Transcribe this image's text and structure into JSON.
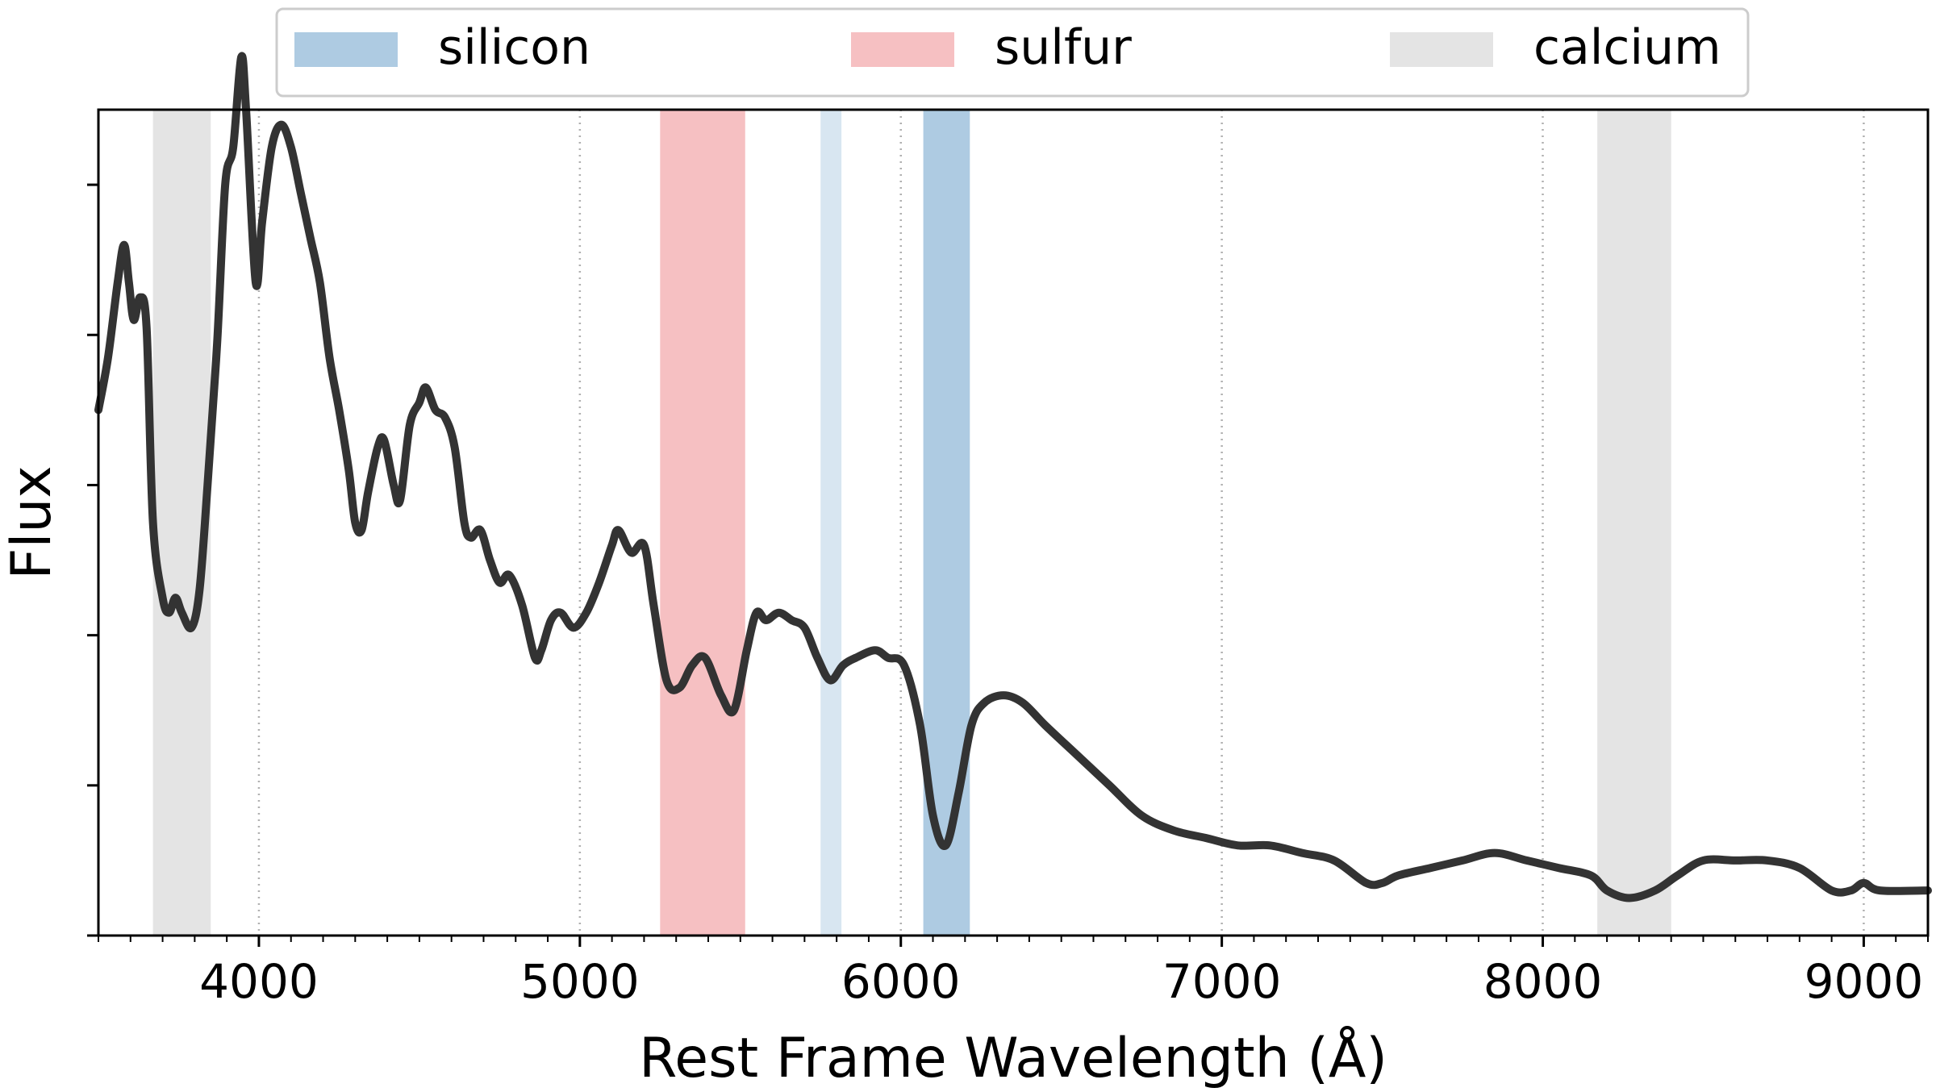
{
  "chart_data": {
    "type": "line",
    "title": "",
    "xlabel": "Rest Frame Wavelength (Å)",
    "ylabel": "Flux",
    "xlim": [
      3500,
      9200
    ],
    "ylim": [
      0.0,
      1.1
    ],
    "x_ticks": [
      4000,
      5000,
      6000,
      7000,
      8000,
      9000
    ],
    "x_tick_labels": [
      "4000",
      "5000",
      "6000",
      "7000",
      "8000",
      "9000"
    ],
    "x_minor_step": 100,
    "y_ticks": [
      0.0,
      0.2,
      0.4,
      0.6,
      0.8,
      1.0
    ],
    "y_tick_labels_visible": false,
    "vertical_gridlines": [
      4000,
      5000,
      6000,
      7000,
      8000,
      9000
    ],
    "legend": {
      "position": "top-center outside",
      "entries": [
        {
          "label": "silicon",
          "color": "#aecbe2"
        },
        {
          "label": "sulfur",
          "color": "#f6c0c2"
        },
        {
          "label": "calcium",
          "color": "#e4e4e4"
        }
      ]
    },
    "bands": [
      {
        "element": "calcium",
        "x0": 3670,
        "x1": 3850,
        "color": "#e4e4e4"
      },
      {
        "element": "sulfur",
        "x0": 5250,
        "x1": 5515,
        "color": "#f6c0c2"
      },
      {
        "element": "silicon",
        "x0": 5750,
        "x1": 5815,
        "color": "#d8e6f1"
      },
      {
        "element": "silicon",
        "x0": 6070,
        "x1": 6215,
        "color": "#aecbe2"
      },
      {
        "element": "calcium",
        "x0": 8170,
        "x1": 8400,
        "color": "#e4e4e4"
      }
    ],
    "series": [
      {
        "name": "spectrum",
        "color": "#333333",
        "points": [
          [
            3500,
            0.7
          ],
          [
            3530,
            0.77
          ],
          [
            3560,
            0.87
          ],
          [
            3580,
            0.92
          ],
          [
            3595,
            0.87
          ],
          [
            3610,
            0.82
          ],
          [
            3630,
            0.85
          ],
          [
            3650,
            0.81
          ],
          [
            3670,
            0.55
          ],
          [
            3700,
            0.45
          ],
          [
            3720,
            0.43
          ],
          [
            3740,
            0.45
          ],
          [
            3760,
            0.43
          ],
          [
            3790,
            0.41
          ],
          [
            3815,
            0.46
          ],
          [
            3840,
            0.6
          ],
          [
            3870,
            0.79
          ],
          [
            3895,
            1.0
          ],
          [
            3920,
            1.05
          ],
          [
            3945,
            1.17
          ],
          [
            3960,
            1.1
          ],
          [
            3990,
            0.87
          ],
          [
            4010,
            0.95
          ],
          [
            4040,
            1.05
          ],
          [
            4070,
            1.08
          ],
          [
            4100,
            1.05
          ],
          [
            4130,
            0.99
          ],
          [
            4160,
            0.93
          ],
          [
            4190,
            0.87
          ],
          [
            4220,
            0.77
          ],
          [
            4250,
            0.7
          ],
          [
            4280,
            0.62
          ],
          [
            4300,
            0.55
          ],
          [
            4320,
            0.54
          ],
          [
            4340,
            0.59
          ],
          [
            4370,
            0.65
          ],
          [
            4390,
            0.66
          ],
          [
            4420,
            0.6
          ],
          [
            4440,
            0.58
          ],
          [
            4470,
            0.68
          ],
          [
            4500,
            0.71
          ],
          [
            4520,
            0.73
          ],
          [
            4550,
            0.7
          ],
          [
            4580,
            0.69
          ],
          [
            4610,
            0.65
          ],
          [
            4640,
            0.55
          ],
          [
            4660,
            0.53
          ],
          [
            4690,
            0.54
          ],
          [
            4720,
            0.5
          ],
          [
            4750,
            0.47
          ],
          [
            4780,
            0.48
          ],
          [
            4820,
            0.44
          ],
          [
            4860,
            0.37
          ],
          [
            4880,
            0.38
          ],
          [
            4910,
            0.42
          ],
          [
            4940,
            0.43
          ],
          [
            4980,
            0.41
          ],
          [
            5020,
            0.43
          ],
          [
            5060,
            0.47
          ],
          [
            5100,
            0.52
          ],
          [
            5120,
            0.54
          ],
          [
            5160,
            0.51
          ],
          [
            5200,
            0.52
          ],
          [
            5230,
            0.44
          ],
          [
            5270,
            0.34
          ],
          [
            5310,
            0.33
          ],
          [
            5350,
            0.36
          ],
          [
            5390,
            0.37
          ],
          [
            5440,
            0.32
          ],
          [
            5480,
            0.3
          ],
          [
            5520,
            0.38
          ],
          [
            5550,
            0.43
          ],
          [
            5580,
            0.42
          ],
          [
            5620,
            0.43
          ],
          [
            5660,
            0.42
          ],
          [
            5700,
            0.41
          ],
          [
            5740,
            0.37
          ],
          [
            5780,
            0.34
          ],
          [
            5820,
            0.36
          ],
          [
            5860,
            0.37
          ],
          [
            5920,
            0.38
          ],
          [
            5960,
            0.37
          ],
          [
            6010,
            0.36
          ],
          [
            6060,
            0.28
          ],
          [
            6100,
            0.16
          ],
          [
            6140,
            0.12
          ],
          [
            6180,
            0.19
          ],
          [
            6220,
            0.28
          ],
          [
            6260,
            0.31
          ],
          [
            6320,
            0.32
          ],
          [
            6380,
            0.31
          ],
          [
            6450,
            0.28
          ],
          [
            6550,
            0.24
          ],
          [
            6650,
            0.2
          ],
          [
            6750,
            0.16
          ],
          [
            6850,
            0.14
          ],
          [
            6950,
            0.13
          ],
          [
            7050,
            0.12
          ],
          [
            7150,
            0.12
          ],
          [
            7250,
            0.11
          ],
          [
            7350,
            0.1
          ],
          [
            7450,
            0.07
          ],
          [
            7500,
            0.07
          ],
          [
            7550,
            0.08
          ],
          [
            7650,
            0.09
          ],
          [
            7750,
            0.1
          ],
          [
            7850,
            0.11
          ],
          [
            7950,
            0.1
          ],
          [
            8050,
            0.09
          ],
          [
            8150,
            0.08
          ],
          [
            8200,
            0.06
          ],
          [
            8270,
            0.05
          ],
          [
            8350,
            0.06
          ],
          [
            8420,
            0.08
          ],
          [
            8500,
            0.1
          ],
          [
            8600,
            0.1
          ],
          [
            8700,
            0.1
          ],
          [
            8800,
            0.09
          ],
          [
            8900,
            0.06
          ],
          [
            8960,
            0.06
          ],
          [
            9000,
            0.07
          ],
          [
            9050,
            0.06
          ],
          [
            9200,
            0.06
          ]
        ]
      }
    ]
  }
}
